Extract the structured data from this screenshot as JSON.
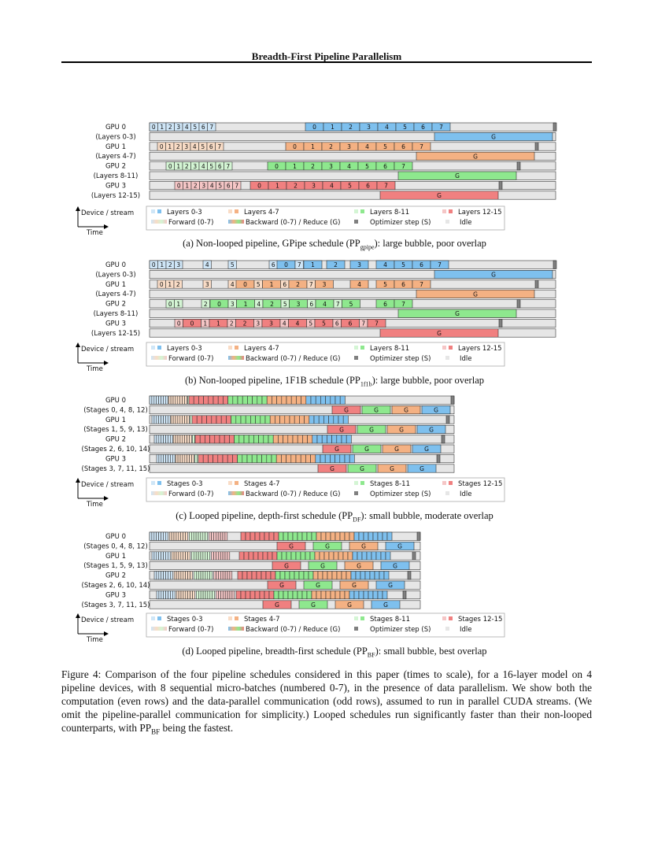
{
  "header": {
    "title": "Breadth-First Pipeline Parallelism"
  },
  "colors": {
    "stage0": "#7ec0ee",
    "stage1": "#f4b183",
    "stage2": "#8ee88e",
    "stage3": "#f08080",
    "fwd0": "#cfe6f7",
    "fwd1": "#f9dcc6",
    "fwd2": "#d4f5d4",
    "fwd3": "#f5c6c6",
    "idle": "#e6e6e6",
    "optimizer": "#808080"
  },
  "panels": [
    {
      "id": "a",
      "gpu_labels": [
        {
          "name": "GPU 0",
          "sub": "(Layers 0-3)"
        },
        {
          "name": "GPU 1",
          "sub": "(Layers 4-7)"
        },
        {
          "name": "GPU 2",
          "sub": "(Layers 8-11)"
        },
        {
          "name": "GPU 3",
          "sub": "(Layers 12-15)"
        }
      ],
      "legend": {
        "axis_device": "Device / stream",
        "axis_time": "Time",
        "groups": [
          "Layers 0-3",
          "Layers 4-7",
          "Layers 8-11",
          "Layers 12-15"
        ],
        "forward": "Forward (0-7)",
        "backward": "Backward (0-7) / Reduce (G)",
        "optimizer": "Optimizer step (S)",
        "idle": "Idle"
      },
      "caption": {
        "before": "(a) Non-looped pipeline, GPipe schedule (PP",
        "sub": "gpipe",
        "after": "): large bubble, poor overlap"
      }
    },
    {
      "id": "b",
      "gpu_labels": [
        {
          "name": "GPU 0",
          "sub": "(Layers 0-3)"
        },
        {
          "name": "GPU 1",
          "sub": "(Layers 4-7)"
        },
        {
          "name": "GPU 2",
          "sub": "(Layers 8-11)"
        },
        {
          "name": "GPU 3",
          "sub": "(Layers 12-15)"
        }
      ],
      "legend": {
        "axis_device": "Device / stream",
        "axis_time": "Time",
        "groups": [
          "Layers 0-3",
          "Layers 4-7",
          "Layers 8-11",
          "Layers 12-15"
        ],
        "forward": "Forward (0-7)",
        "backward": "Backward (0-7) / Reduce (G)",
        "optimizer": "Optimizer step (S)",
        "idle": "Idle"
      },
      "caption": {
        "before": "(b) Non-looped pipeline, 1F1B schedule (PP",
        "sub": "1f1b",
        "after": "): large bubble, poor overlap"
      }
    },
    {
      "id": "c",
      "gpu_labels": [
        {
          "name": "GPU 0",
          "sub": "(Stages 0, 4, 8, 12)"
        },
        {
          "name": "GPU 1",
          "sub": "(Stages 1, 5, 9, 13)"
        },
        {
          "name": "GPU 2",
          "sub": "(Stages 2, 6, 10, 14)"
        },
        {
          "name": "GPU 3",
          "sub": "(Stages 3, 7, 11, 15)"
        }
      ],
      "legend": {
        "axis_device": "Device / stream",
        "axis_time": "Time",
        "groups": [
          "Stages 0-3",
          "Stages 4-7",
          "Stages 8-11",
          "Stages 12-15"
        ],
        "forward": "Forward (0-7)",
        "backward": "Backward (0-7) / Reduce (G)",
        "optimizer": "Optimizer step (S)",
        "idle": "Idle"
      },
      "caption": {
        "before": "(c) Looped pipeline, depth-first schedule (PP",
        "sub": "DF",
        "after": "): small bubble, moderate overlap"
      }
    },
    {
      "id": "d",
      "gpu_labels": [
        {
          "name": "GPU 0",
          "sub": "(Stages 0, 4, 8, 12)"
        },
        {
          "name": "GPU 1",
          "sub": "(Stages 1, 5, 9, 13)"
        },
        {
          "name": "GPU 2",
          "sub": "(Stages 2, 6, 10, 14)"
        },
        {
          "name": "GPU 3",
          "sub": "(Stages 3, 7, 11, 15)"
        }
      ],
      "legend": {
        "axis_device": "Device / stream",
        "axis_time": "Time",
        "groups": [
          "Stages 0-3",
          "Stages 4-7",
          "Stages 8-11",
          "Stages 12-15"
        ],
        "forward": "Forward (0-7)",
        "backward": "Backward (0-7) / Reduce (G)",
        "optimizer": "Optimizer step (S)",
        "idle": "Idle"
      },
      "caption": {
        "before": "(d) Looped pipeline, breadth-first schedule (PP",
        "sub": "BF",
        "after": "): small bubble, best overlap"
      }
    }
  ],
  "figure_caption": {
    "part1": "Figure 4: Comparison of the four pipeline schedules considered in this paper (times to scale), for a 16-layer model on 4 pipeline devices, with 8 sequential micro-batches (numbered 0-7), in the presence of data parallelism. We show both the computation (even rows) and the data-parallel communication (odd rows), assumed to run in parallel CUDA streams. (We omit the pipeline-parallel communication for simplicity.) Looped schedules run significantly faster than their non-looped counterparts, with PP",
    "sub": "BF",
    "part2": " being the fastest."
  }
}
